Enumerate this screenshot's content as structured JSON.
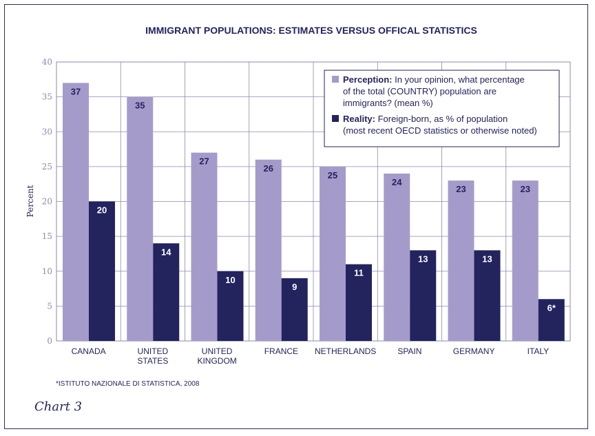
{
  "chart_data": {
    "type": "bar",
    "title": "IMMIGRANT POPULATIONS: ESTIMATES VERSUS OFFICAL STATISTICS",
    "ylabel": "Percent",
    "xlabel": "",
    "ylim": [
      0,
      40
    ],
    "yticks": [
      0,
      5,
      10,
      15,
      20,
      25,
      30,
      35,
      40
    ],
    "grid": true,
    "legend_position": "top-right",
    "categories": [
      [
        "CANADA"
      ],
      [
        "UNITED",
        "STATES"
      ],
      [
        "UNITED",
        "KINGDOM"
      ],
      [
        "FRANCE"
      ],
      [
        "NETHERLANDS"
      ],
      [
        "SPAIN"
      ],
      [
        "GERMANY"
      ],
      [
        "ITALY"
      ]
    ],
    "series": [
      {
        "name": "Perception",
        "legend_bold": "Perception:",
        "legend_lines": [
          " In your opinion, what percentage",
          "of the total (COUNTRY) population are",
          "immigrants? (mean %)"
        ],
        "color": "#a59bcb",
        "label_color": "#23235e",
        "values": [
          37,
          35,
          27,
          26,
          25,
          24,
          23,
          23
        ],
        "labels": [
          "37",
          "35",
          "27",
          "26",
          "25",
          "24",
          "23",
          "23"
        ]
      },
      {
        "name": "Reality",
        "legend_bold": "Reality:",
        "legend_lines": [
          " Foreign-born, as % of population",
          "(most recent OECD statistics or otherwise noted)"
        ],
        "color": "#23235e",
        "label_color": "#ffffff",
        "values": [
          20,
          14,
          10,
          9,
          11,
          13,
          13,
          6
        ],
        "labels": [
          "20",
          "14",
          "10",
          "9",
          "11",
          "13",
          "13",
          "6*"
        ]
      }
    ],
    "footnote": "*ISTITUTO NAZIONALE DI STATISTICA, 2008"
  },
  "caption": "Chart 3",
  "colors": {
    "axis_text": "#8a8ab0",
    "text": "#23235e",
    "grid": "#8a8ab0",
    "plot_border": "#8a8ab0"
  }
}
